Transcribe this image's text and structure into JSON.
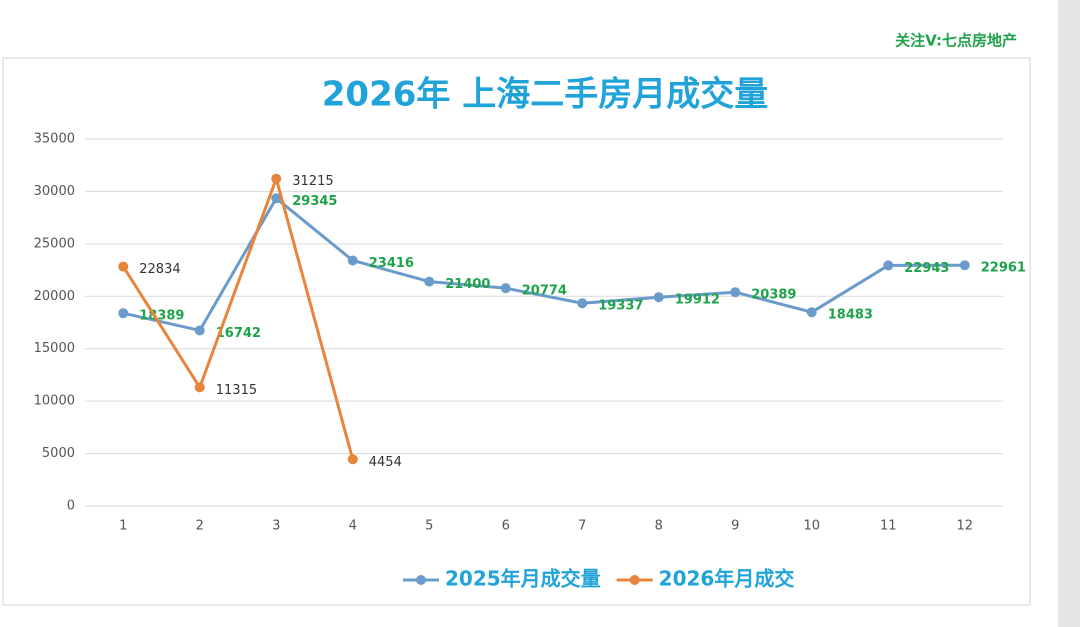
{
  "chart_data": {
    "type": "line",
    "title": "2026年 上海二手房月成交量",
    "annotation": "关注V:七点房地产",
    "categories": [
      "1",
      "2",
      "3",
      "4",
      "5",
      "6",
      "7",
      "8",
      "9",
      "10",
      "11",
      "12"
    ],
    "series": [
      {
        "name": "2025年月成交量",
        "color": "#6b9bca",
        "label_color": "#1ea34a",
        "values": [
          18389,
          16742,
          29345,
          23416,
          21400,
          20774,
          19337,
          19912,
          20389,
          18483,
          22943,
          22961
        ]
      },
      {
        "name": "2026年月成交",
        "color": "#e8843c",
        "label_color": "#333333",
        "values": [
          22834,
          11315,
          31215,
          4454,
          null,
          null,
          null,
          null,
          null,
          null,
          null,
          null
        ]
      }
    ],
    "ylim": [
      0,
      35000
    ],
    "yticks": [
      0,
      5000,
      10000,
      15000,
      20000,
      25000,
      30000,
      35000
    ],
    "grid": true,
    "legend": "bottom"
  }
}
